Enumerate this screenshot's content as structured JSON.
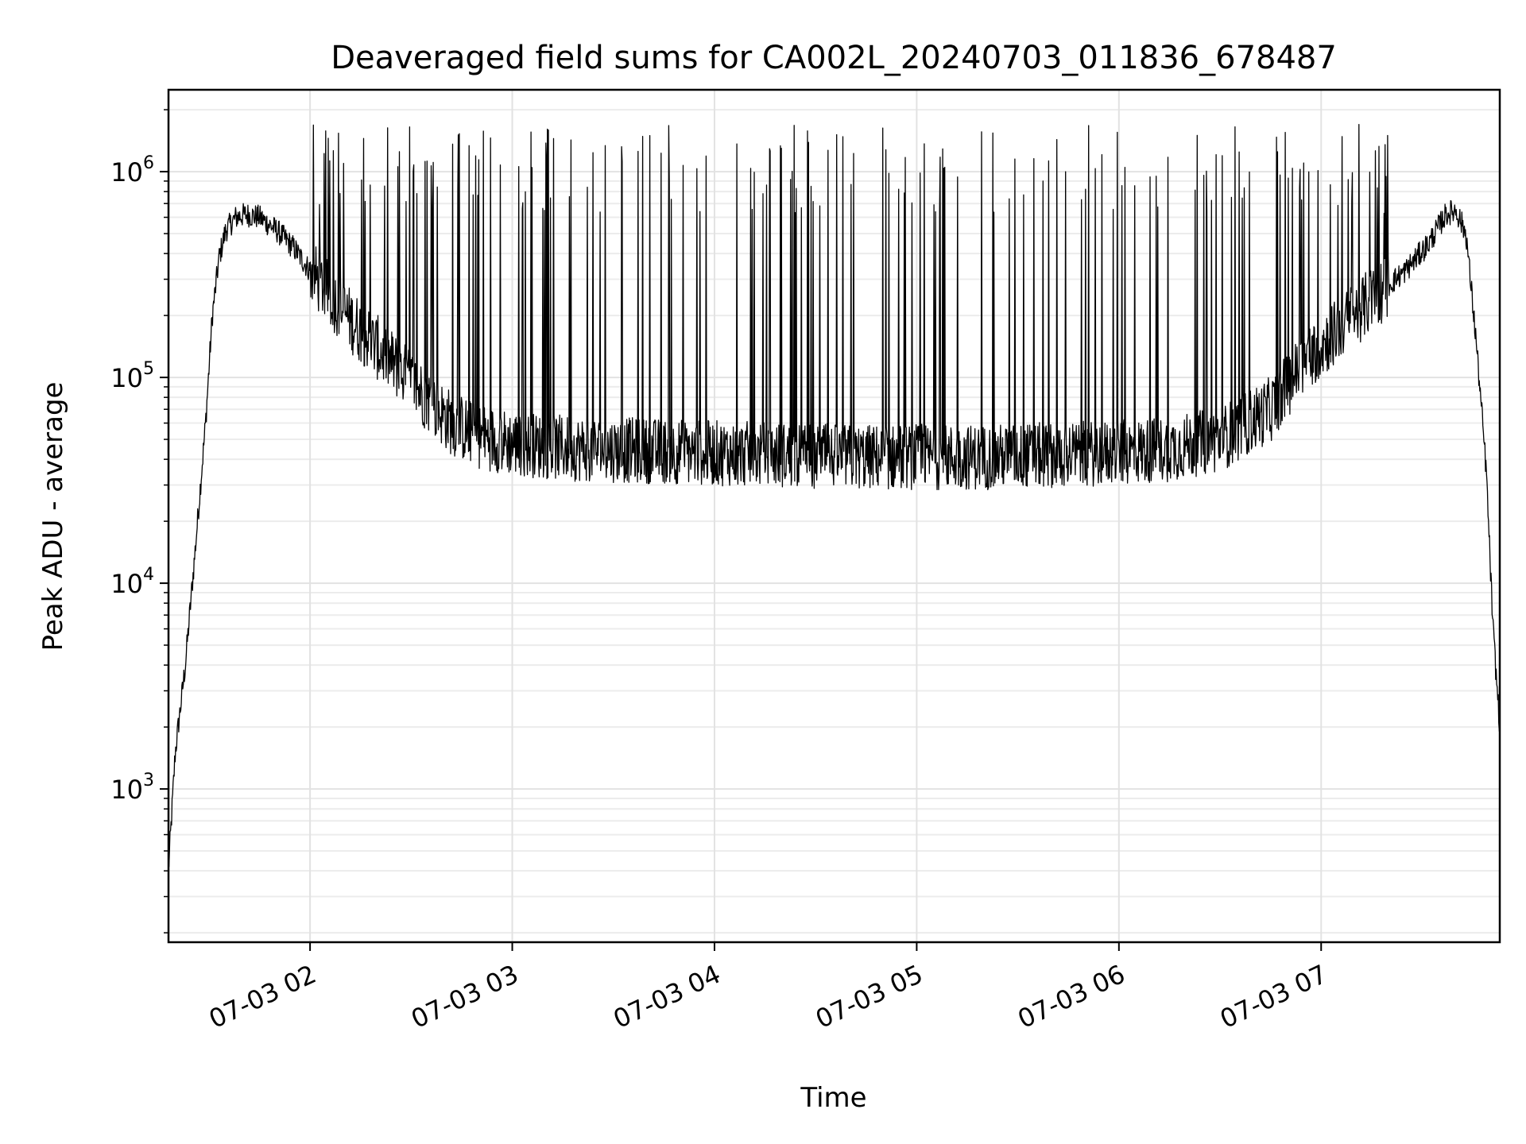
{
  "chart_data": {
    "type": "line",
    "title": "Deaveraged field sums for CA002L_20240703_011836_678487",
    "xlabel": "Time",
    "ylabel": "Peak ADU - average",
    "yscale": "log",
    "ylim": [
      180,
      2500000
    ],
    "xlim": [
      "2024-07-03 01:18",
      "2024-07-03 07:53"
    ],
    "grid": true,
    "x_ticks": [
      {
        "value": "2024-07-03 02:00",
        "label": "07-03 02"
      },
      {
        "value": "2024-07-03 03:00",
        "label": "07-03 03"
      },
      {
        "value": "2024-07-03 04:00",
        "label": "07-03 04"
      },
      {
        "value": "2024-07-03 05:00",
        "label": "07-03 05"
      },
      {
        "value": "2024-07-03 06:00",
        "label": "07-03 06"
      },
      {
        "value": "2024-07-03 07:00",
        "label": "07-03 07"
      }
    ],
    "y_ticks": [
      {
        "value": 1000,
        "base": "10",
        "exp": "3"
      },
      {
        "value": 10000,
        "base": "10",
        "exp": "4"
      },
      {
        "value": 100000,
        "base": "10",
        "exp": "5"
      },
      {
        "value": 1000000,
        "base": "10",
        "exp": "6"
      }
    ],
    "series": [
      {
        "color": "#000000",
        "x": [
          "2024-07-03 01:18",
          "2024-07-03 01:20",
          "2024-07-03 01:23",
          "2024-07-03 01:26",
          "2024-07-03 01:29",
          "2024-07-03 01:31",
          "2024-07-03 01:33",
          "2024-07-03 01:35",
          "2024-07-03 01:38",
          "2024-07-03 01:41",
          "2024-07-03 01:45",
          "2024-07-03 01:50",
          "2024-07-03 01:55",
          "2024-07-03 02:00",
          "2024-07-03 02:06",
          "2024-07-03 02:12",
          "2024-07-03 02:18",
          "2024-07-03 02:24",
          "2024-07-03 02:30",
          "2024-07-03 02:36",
          "2024-07-03 02:42",
          "2024-07-03 02:50",
          "2024-07-03 03:00",
          "2024-07-03 03:10",
          "2024-07-03 03:20",
          "2024-07-03 03:40",
          "2024-07-03 04:00",
          "2024-07-03 04:20",
          "2024-07-03 04:40",
          "2024-07-03 05:00",
          "2024-07-03 05:20",
          "2024-07-03 05:40",
          "2024-07-03 06:00",
          "2024-07-03 06:15",
          "2024-07-03 06:30",
          "2024-07-03 06:45",
          "2024-07-03 06:55",
          "2024-07-03 07:05",
          "2024-07-03 07:15",
          "2024-07-03 07:25",
          "2024-07-03 07:32",
          "2024-07-03 07:37",
          "2024-07-03 07:40",
          "2024-07-03 07:43",
          "2024-07-03 07:46",
          "2024-07-03 07:49",
          "2024-07-03 07:51",
          "2024-07-03 07:53"
        ],
        "values": [
          400,
          1500,
          4000,
          15000,
          60000,
          200000,
          380000,
          520000,
          600000,
          620000,
          600000,
          520000,
          430000,
          330000,
          250000,
          190000,
          150000,
          120000,
          95000,
          75000,
          60000,
          52000,
          48000,
          46000,
          45000,
          44000,
          43000,
          42000,
          41000,
          41000,
          41000,
          42000,
          43000,
          45000,
          50000,
          70000,
          120000,
          170000,
          240000,
          330000,
          450000,
          620000,
          650000,
          500000,
          150000,
          35000,
          6000,
          2000
        ]
      }
    ],
    "spikes": {
      "ranges": [
        [
          "2024-07-03 02:00",
          "2024-07-03 07:20"
        ]
      ],
      "peak_typical": 1400000,
      "peak_max": 1700000
    }
  }
}
